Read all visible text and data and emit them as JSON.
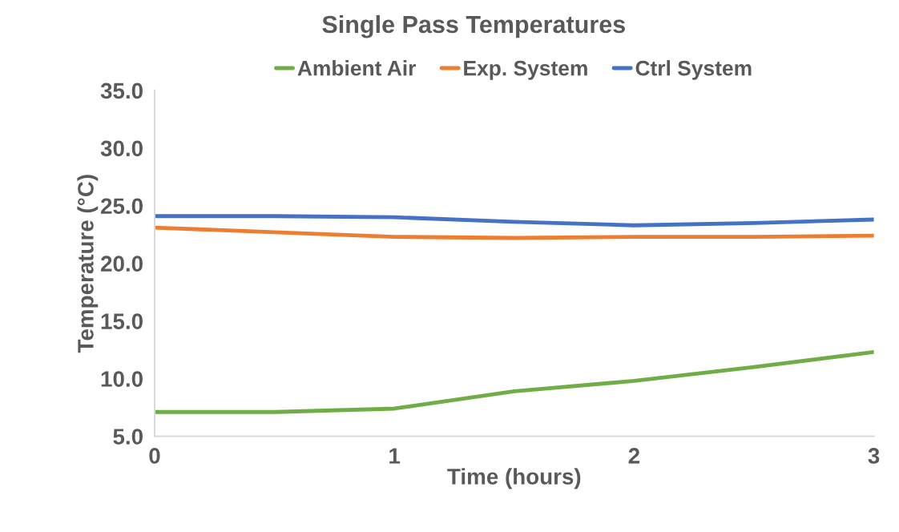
{
  "chart_data": {
    "type": "line",
    "title": "Single Pass Temperatures",
    "xlabel": "Time (hours)",
    "ylabel": "Temperature (°C)",
    "x": [
      0,
      0.5,
      1,
      1.5,
      2,
      2.5,
      3
    ],
    "series": [
      {
        "name": "Ambient Air",
        "color": "#70ad47",
        "values": [
          7.1,
          7.1,
          7.4,
          8.9,
          9.8,
          11.0,
          12.3
        ]
      },
      {
        "name": "Exp. System",
        "color": "#ed7d31",
        "values": [
          23.1,
          22.7,
          22.3,
          22.2,
          22.3,
          22.3,
          22.4
        ]
      },
      {
        "name": "Ctrl System",
        "color": "#4472c4",
        "values": [
          24.1,
          24.1,
          24.0,
          23.6,
          23.3,
          23.5,
          23.8
        ]
      }
    ],
    "xlim": [
      0,
      3
    ],
    "xticks": [
      0,
      1,
      2,
      3
    ],
    "ylim": [
      5,
      35
    ],
    "yticks": [
      {
        "value": 5,
        "label": "5.0"
      },
      {
        "value": 10,
        "label": "10.0"
      },
      {
        "value": 15,
        "label": "15.0"
      },
      {
        "value": 20,
        "label": "20.0"
      },
      {
        "value": 25,
        "label": "25.0"
      },
      {
        "value": 30,
        "label": "30.0"
      },
      {
        "value": 35,
        "label": "35.0"
      }
    ],
    "grid": false,
    "legend": "top",
    "marker": "none",
    "line_style": "solid"
  }
}
